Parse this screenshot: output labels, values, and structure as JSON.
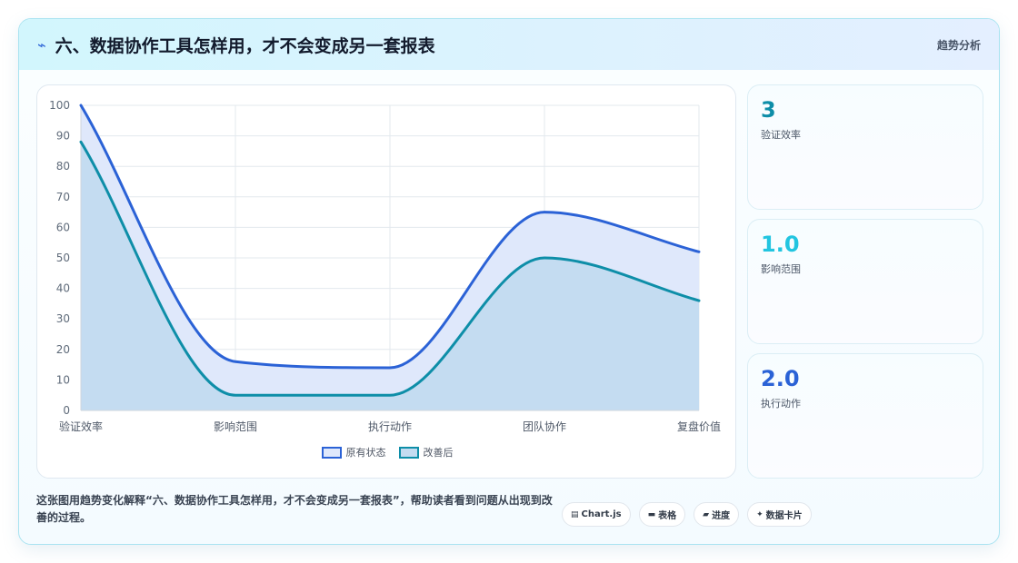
{
  "header": {
    "icon": "lightning-icon",
    "title": "六、数据协作工具怎样用，才不会变成另一套报表",
    "tag": "趋势分析"
  },
  "chart_data": {
    "type": "area",
    "categories": [
      "验证效率",
      "影响范围",
      "执行动作",
      "团队协作",
      "复盘价值"
    ],
    "ylim": [
      0,
      100
    ],
    "yticks": [
      0,
      10,
      20,
      30,
      40,
      50,
      60,
      70,
      80,
      90,
      100
    ],
    "grid": true,
    "legend_position": "bottom",
    "series": [
      {
        "name": "原有状态",
        "values": [
          100,
          16,
          14,
          65,
          52
        ],
        "color": "#2b62d6",
        "fill": "#dfe8fb"
      },
      {
        "name": "改善后",
        "values": [
          88,
          5,
          5,
          50,
          36
        ],
        "color": "#0e8ea8",
        "fill": "#c4dcf1"
      }
    ]
  },
  "stats": [
    {
      "value": "3",
      "label": "验证效率",
      "color": "#0e8ea8"
    },
    {
      "value": "1.0",
      "label": "影响范围",
      "color": "#22c5e0"
    },
    {
      "value": "2.0",
      "label": "执行动作",
      "color": "#2b62d6"
    }
  ],
  "caption": "这张图用趋势变化解释“六、数据协作工具怎样用，才不会变成另一套报表”，帮助读者看到问题从出现到改善的过程。",
  "tags": [
    {
      "icon": "▤",
      "label": "Chart.js"
    },
    {
      "icon": "▬",
      "label": "表格"
    },
    {
      "icon": "▰",
      "label": "进度"
    },
    {
      "icon": "✦",
      "label": "数据卡片"
    }
  ]
}
